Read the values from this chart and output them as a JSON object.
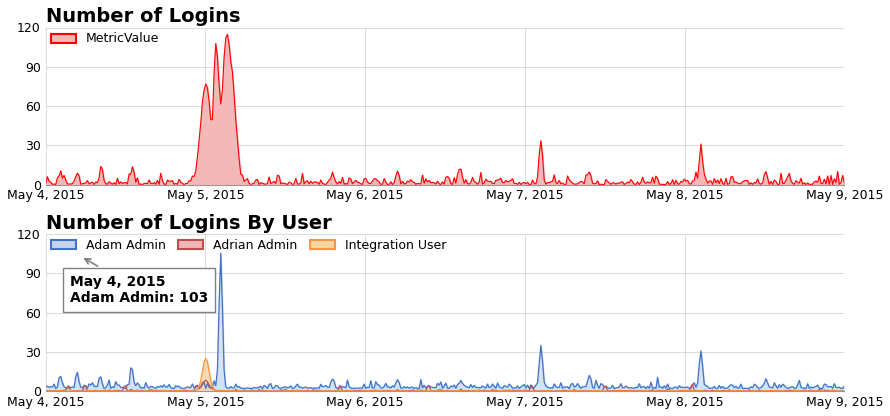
{
  "title1": "Number of Logins",
  "title2": "Number of Logins By User",
  "legend1": "MetricValue",
  "legend2_labels": [
    "Adam Admin",
    "Adrian Admin",
    "Integration User"
  ],
  "legend2_colors": [
    "#4472c4",
    "#c0504d",
    "#f79646"
  ],
  "metric_color": "#ff0000",
  "metric_fill": "#f5b8b8",
  "adam_color": "#4472c4",
  "adam_fill": "#c5d5ee",
  "adrian_color": "#c0504d",
  "integration_color": "#f79646",
  "integration_fill": "#f5d5a0",
  "bg_color": "#ffffff",
  "grid_color": "#cccccc",
  "ylim1": [
    0,
    120
  ],
  "ylim2": [
    0,
    120
  ],
  "yticks": [
    0,
    30,
    60,
    90,
    120
  ],
  "xlabel_dates": [
    "May 4, 2015",
    "May 5, 2015",
    "May 6, 2015",
    "May 7, 2015",
    "May 8, 2015",
    "May 9, 2015"
  ],
  "tooltip_date": "May 4, 2015",
  "tooltip_text": "Adam Admin: 103",
  "title_fontsize": 14,
  "label_fontsize": 9
}
